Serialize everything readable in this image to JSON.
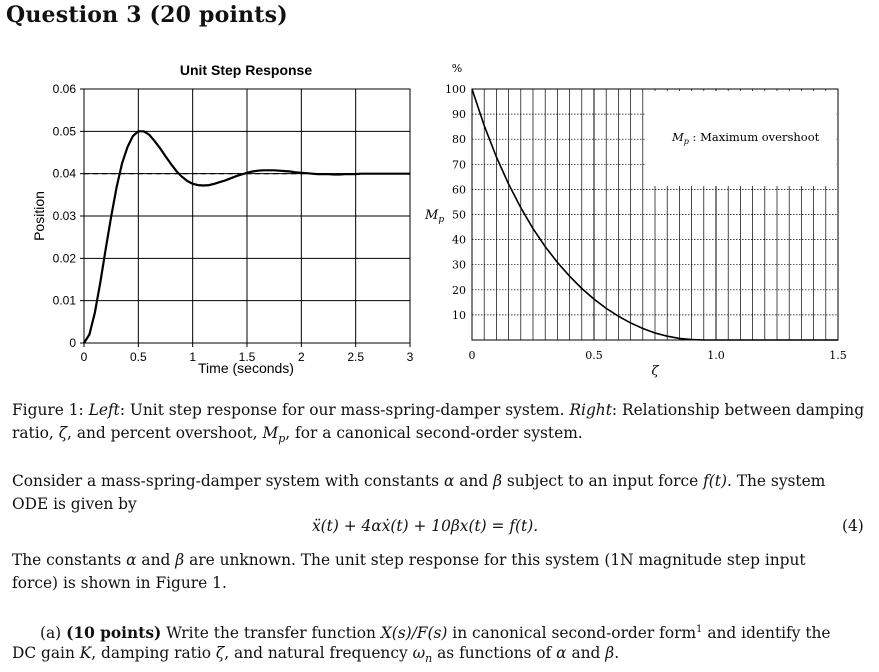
{
  "question": {
    "title": "Question 3 (20 points)"
  },
  "left_plot": {
    "title": "Unit Step Response",
    "xlabel": "Time (seconds)",
    "ylabel": "Position",
    "xticks": [
      "0",
      "0.5",
      "1",
      "1.5",
      "2",
      "2.5",
      "3"
    ],
    "yticks": [
      "0",
      "0.01",
      "0.02",
      "0.03",
      "0.04",
      "0.05",
      "0.06"
    ]
  },
  "right_plot": {
    "top_label": "%",
    "ylabel": "Mp",
    "xlabel": "ζ",
    "annotation": "Mp : Maximum overshoot",
    "xticks": [
      "0",
      "0.5",
      "1.0",
      "1.5"
    ],
    "yticks": [
      "10",
      "20",
      "30",
      "40",
      "50",
      "60",
      "70",
      "80",
      "90",
      "100"
    ]
  },
  "chart_data": [
    {
      "type": "line",
      "title": "Unit Step Response",
      "xlabel": "Time (seconds)",
      "ylabel": "Position",
      "xlim": [
        0,
        3
      ],
      "ylim": [
        0,
        0.06
      ],
      "grid": true,
      "steady_state": 0.04,
      "series": [
        {
          "x": [
            0,
            0.05,
            0.1,
            0.15,
            0.2,
            0.25,
            0.3,
            0.35,
            0.4,
            0.45,
            0.5,
            0.55,
            0.6,
            0.65,
            0.7,
            0.75,
            0.8,
            0.85,
            0.9,
            0.95,
            1.0,
            1.05,
            1.1,
            1.15,
            1.2,
            1.25,
            1.3,
            1.35,
            1.4,
            1.45,
            1.5,
            1.55,
            1.6,
            1.65,
            1.7,
            1.75,
            1.8,
            1.85,
            1.9,
            1.95,
            2.0,
            2.05,
            2.1,
            2.15,
            2.2,
            2.25,
            2.3,
            2.35,
            2.4,
            2.45,
            2.5,
            2.55,
            2.6,
            2.65,
            2.7,
            2.75,
            2.8,
            2.85,
            2.9,
            2.95,
            3.0
          ],
          "y": [
            0,
            0.002,
            0.0072,
            0.0143,
            0.0222,
            0.0299,
            0.0368,
            0.0424,
            0.0463,
            0.0489,
            0.05,
            0.05,
            0.0492,
            0.0477,
            0.046,
            0.0441,
            0.0423,
            0.0406,
            0.0393,
            0.0383,
            0.0376,
            0.0373,
            0.0372,
            0.0373,
            0.0376,
            0.038,
            0.0384,
            0.0389,
            0.0394,
            0.0398,
            0.0402,
            0.0405,
            0.0407,
            0.0408,
            0.0408,
            0.0408,
            0.0407,
            0.0406,
            0.0405,
            0.0403,
            0.0402,
            0.0401,
            0.04,
            0.0399,
            0.0399,
            0.0399,
            0.0398,
            0.0398,
            0.0399,
            0.0399,
            0.0399,
            0.04,
            0.04,
            0.04,
            0.04,
            0.04,
            0.04,
            0.04,
            0.04,
            0.04,
            0.04
          ]
        }
      ]
    },
    {
      "type": "line",
      "xlabel": "ζ",
      "ylabel": "Mp",
      "xlim": [
        0,
        1.5
      ],
      "ylim": [
        0,
        100
      ],
      "grid": true,
      "series": [
        {
          "x": [
            0,
            0.05,
            0.1,
            0.15,
            0.2,
            0.25,
            0.3,
            0.35,
            0.4,
            0.45,
            0.5,
            0.55,
            0.6,
            0.65,
            0.7,
            0.75,
            0.8,
            0.85,
            0.9,
            0.95,
            1.0,
            1.5
          ],
          "y": [
            100,
            85.4,
            72.9,
            62.1,
            52.7,
            44.4,
            37.2,
            30.9,
            25.4,
            20.5,
            16.3,
            12.6,
            9.5,
            6.8,
            4.6,
            2.8,
            1.5,
            0.63,
            0.15,
            0.01,
            0,
            0
          ]
        }
      ]
    }
  ],
  "figure_caption": {
    "lead": "Figure 1:",
    "left_label": "Left",
    "left_text": ": Unit step response for our mass-spring-damper system.",
    "right_label": "Right",
    "right_text": ": Relationship between damping",
    "line2_a": "ratio, ",
    "zeta": "ζ",
    "line2_b": ", and percent overshoot, ",
    "mp_M": "M",
    "mp_p": "p",
    "line2_c": ", for a canonical second-order system."
  },
  "paragraph1": {
    "a": "Consider a mass-spring-damper system with constants ",
    "alpha": "α",
    "b": " and ",
    "beta": "β",
    "c": " subject to an input force ",
    "ft": "f(t)",
    "d": ". The system",
    "line2": "ODE is given by"
  },
  "equation": {
    "text": "ẍ(t) + 4αẋ(t) + 10βx(t) = f(t).",
    "number": "(4)"
  },
  "paragraph2": {
    "a": "The constants ",
    "alpha": "α",
    "b": " and ",
    "beta": "β",
    "c": " are unknown. The unit step response for this system (1N magnitude step input",
    "line2": "force) is shown in Figure 1."
  },
  "part_a": {
    "label": "(a)",
    "points": "(10 points)",
    "text1": " Write the transfer function ",
    "tf": "X(s)/F(s)",
    "text2": " in canonical second-order form",
    "footnote": "1",
    "text3": " and identify the",
    "line2_a": "DC gain ",
    "K": "K",
    "line2_b": ", damping ratio ",
    "zeta": "ζ",
    "line2_c": ", and natural frequency ",
    "omega": "ω",
    "n": "n",
    "line2_d": " as functions of ",
    "alpha": "α",
    "line2_e": " and ",
    "beta": "β",
    "line2_f": "."
  }
}
